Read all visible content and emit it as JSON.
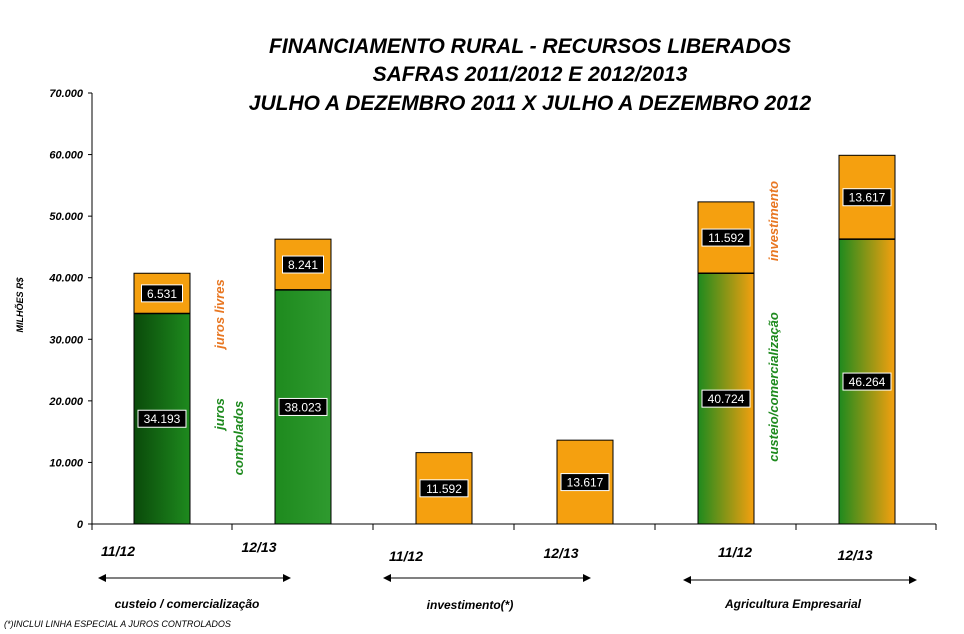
{
  "chart_data": {
    "type": "bar",
    "stacked": true,
    "title_lines": [
      "FINANCIAMENTO RURAL - RECURSOS LIBERADOS",
      "SAFRAS 2011/2012 E 2012/2013",
      "JULHO A DEZEMBRO 2011 X JULHO A DEZEMBRO 2012"
    ],
    "ylabel": "MILHÕES R$",
    "ylim": [
      0,
      70000
    ],
    "yticks": [
      "0",
      "10.000",
      "20.000",
      "30.000",
      "40.000",
      "50.000",
      "60.000",
      "70.000"
    ],
    "categories": [
      "11/12",
      "12/13",
      "11/12",
      "12/13",
      "11/12",
      "12/13"
    ],
    "groups": [
      "custeio / comercialização",
      "investimento(*)",
      "Agricultura Empresarial"
    ],
    "series": [
      {
        "values": [
          34193,
          38023,
          0,
          0,
          40724,
          46264
        ],
        "labels": [
          "34.193",
          "38.023",
          "",
          "",
          "40.724",
          "46.264"
        ]
      },
      {
        "values": [
          6531,
          8241,
          11592,
          13617,
          11592,
          13617
        ],
        "labels": [
          "6.531",
          "8.241",
          "11.592",
          "13.617",
          "11.592",
          "13.617"
        ]
      }
    ],
    "annotations": {
      "juros_livres": "juros livres",
      "juros_controlados": [
        "juros",
        "controlados"
      ],
      "investimento": "investimento",
      "custeio_comercializacao": "custeio/comercialização"
    },
    "footnote": "(*)INCLUI LINHA ESPECIAL A JUROS CONTROLADOS",
    "colors": {
      "green": "#1E8A1E",
      "green_dark": "#0A4A0A",
      "orange": "#F5A00F",
      "annotation_orange": "#E87722",
      "label_bg": "#000000",
      "label_text": "#FFFFFF"
    }
  }
}
